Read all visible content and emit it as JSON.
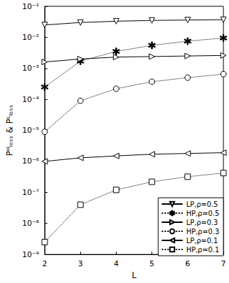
{
  "chart_data": {
    "type": "line",
    "x_label": "L",
    "y_label": "Pᴴₗₒₛₛ & Pᴸₗₒₛₛ",
    "x": [
      2,
      3,
      4,
      5,
      6,
      7
    ],
    "xlim": [
      2,
      7
    ],
    "xticks": [
      2,
      3,
      4,
      5,
      6,
      7
    ],
    "log": "y",
    "ylim": [
      1e-09,
      0.1
    ],
    "yticks": [
      {
        "value": 1e-09,
        "label": "10⁻⁹"
      },
      {
        "value": 1e-08,
        "label": "10⁻⁸"
      },
      {
        "value": 1e-07,
        "label": "10⁻⁷"
      },
      {
        "value": 1e-06,
        "label": "10⁻⁶"
      },
      {
        "value": 1e-05,
        "label": "10⁻⁵"
      },
      {
        "value": 0.0001,
        "label": "10⁻⁴"
      },
      {
        "value": 0.001,
        "label": "10⁻³"
      },
      {
        "value": 0.01,
        "label": "10⁻²"
      },
      {
        "value": 0.1,
        "label": "10⁻¹"
      }
    ],
    "grid": false,
    "legend": "lower right",
    "series": [
      {
        "name": "LP,ρ=0.5",
        "color": "#000000",
        "marker": "triangle-down",
        "line_style": "solid",
        "values": [
          0.025,
          0.03,
          0.033,
          0.035,
          0.036,
          0.037
        ]
      },
      {
        "name": "HP,ρ=0.5",
        "color": "#000000",
        "marker": "star",
        "line_style": "dotted",
        "values": [
          0.00025,
          0.0017,
          0.0035,
          0.0055,
          0.0075,
          0.0095
        ]
      },
      {
        "name": "LP,ρ=0.3",
        "color": "#000000",
        "marker": "triangle-right",
        "line_style": "solid",
        "values": [
          0.0016,
          0.002,
          0.0023,
          0.0024,
          0.0025,
          0.0026
        ]
      },
      {
        "name": "HP,ρ=0.3",
        "color": "#000000",
        "marker": "circle",
        "line_style": "dotted",
        "values": [
          9e-06,
          9e-05,
          0.00022,
          0.00037,
          0.0005,
          0.00065
        ]
      },
      {
        "name": "LP,ρ=0.1",
        "color": "#000000",
        "marker": "triangle-left",
        "line_style": "solid",
        "values": [
          1e-06,
          1.3e-06,
          1.5e-06,
          1.7e-06,
          1.8e-06,
          1.9e-06
        ]
      },
      {
        "name": "HP,ρ=0.1",
        "color": "#000000",
        "marker": "square",
        "line_style": "dotted",
        "values": [
          2.5e-09,
          4e-08,
          1.2e-07,
          2.2e-07,
          3.2e-07,
          4.2e-07
        ]
      }
    ]
  }
}
